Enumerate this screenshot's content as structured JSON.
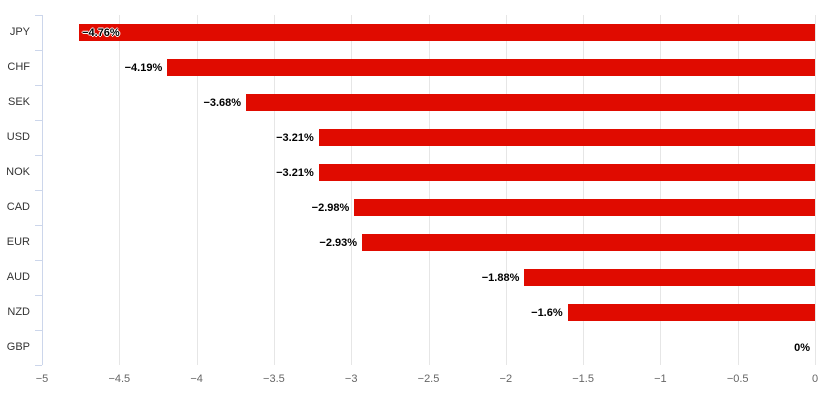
{
  "chart_data": {
    "type": "bar",
    "orientation": "horizontal",
    "title": "",
    "categories": [
      "JPY",
      "CHF",
      "SEK",
      "USD",
      "NOK",
      "CAD",
      "EUR",
      "AUD",
      "NZD",
      "GBP"
    ],
    "values": [
      -4.76,
      -4.19,
      -3.68,
      -3.21,
      -3.21,
      -2.98,
      -2.93,
      -1.88,
      -1.6,
      0
    ],
    "data_labels": [
      "−4.76%",
      "−4.19%",
      "−3.68%",
      "−3.21%",
      "−3.21%",
      "−2.98%",
      "−2.93%",
      "−1.88%",
      "−1.6%",
      "0%"
    ],
    "x_ticks": [
      -5,
      -4.5,
      -4,
      -3.5,
      -3,
      -2.5,
      -2,
      -1.5,
      -1,
      -0.5,
      0
    ],
    "x_tick_labels": [
      "−5",
      "−4.5",
      "−4",
      "−3.5",
      "−3",
      "−2.5",
      "−2",
      "−1.5",
      "−1",
      "−0.5",
      "0"
    ],
    "xlim": [
      -5,
      0
    ],
    "xlabel": "",
    "ylabel": "",
    "grid": true,
    "legend": false,
    "colors": {
      "bar": "#e00b00",
      "gridline": "#e6e6e6",
      "axis_line": "#ccd6eb",
      "category_label": "#333333",
      "tick_label": "#666666",
      "data_label": "#000000",
      "background": "#ffffff"
    }
  }
}
